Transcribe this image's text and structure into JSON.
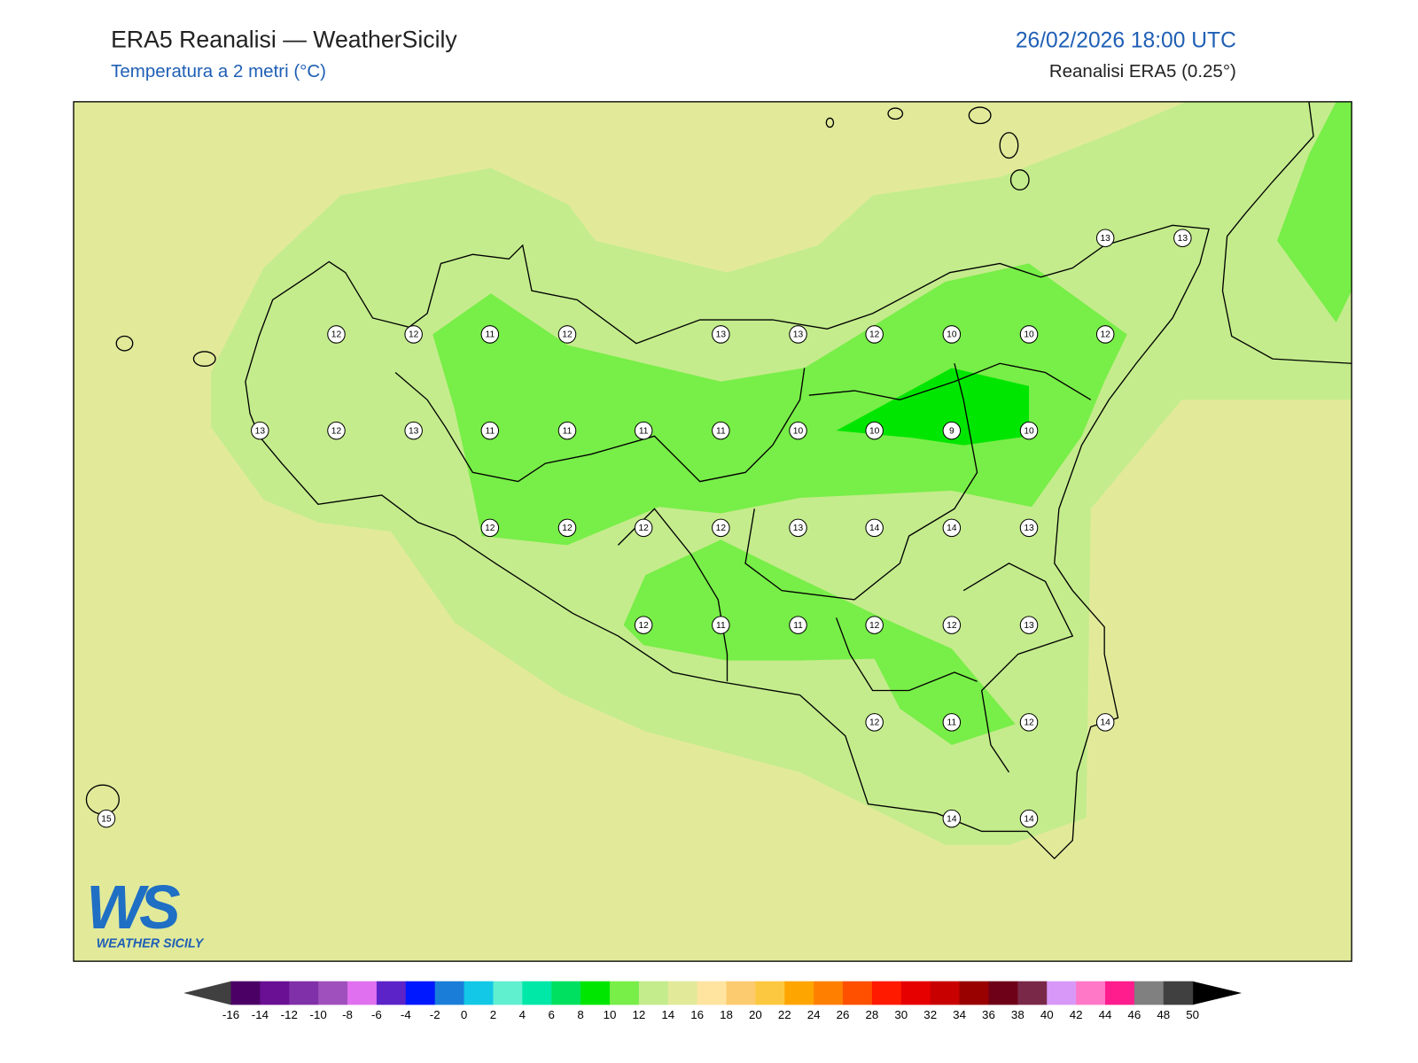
{
  "header": {
    "title": "ERA5 Reanalisi — WeatherSicily",
    "subtitle": "Temperatura a 2 metri (°C)",
    "datetime": "26/02/2026 18:00 UTC",
    "source": "Reanalisi ERA5 (0.25°)"
  },
  "map": {
    "station_values": [
      13,
      13,
      12,
      12,
      11,
      12,
      13,
      13,
      12,
      10,
      10,
      12,
      13,
      12,
      13,
      11,
      11,
      11,
      11,
      10,
      10,
      9,
      10,
      12,
      12,
      12,
      12,
      13,
      14,
      14,
      13,
      12,
      11,
      11,
      12,
      12,
      13,
      12,
      11,
      12,
      14,
      15,
      14,
      14
    ]
  },
  "colorbar": {
    "ticks": [
      -16,
      -14,
      -12,
      -10,
      -8,
      -6,
      -4,
      -2,
      0,
      2,
      4,
      6,
      8,
      10,
      12,
      14,
      16,
      18,
      20,
      22,
      24,
      26,
      28,
      30,
      32,
      34,
      36,
      38,
      40,
      42,
      44,
      46,
      48,
      50
    ],
    "colors": [
      "#4b0066",
      "#6a1094",
      "#8030a8",
      "#a050bc",
      "#e070f0",
      "#5c23c8",
      "#0018ff",
      "#1a7ed9",
      "#12c8e6",
      "#60f0d0",
      "#00e8a8",
      "#00e060",
      "#00e600",
      "#78ee48",
      "#c4ec8c",
      "#e2ea9a",
      "#ffe4a0",
      "#fccb70",
      "#fcc840",
      "#ffa500",
      "#ff8000",
      "#ff5000",
      "#ff1a00",
      "#e60000",
      "#c80000",
      "#990000",
      "#6e0018",
      "#7a2848",
      "#d898f8",
      "#ff78c8",
      "#ff1c8c",
      "#808080",
      "#404040"
    ],
    "extend_colors": [
      "#404040",
      "#000000"
    ]
  },
  "logo": {
    "mark": "WS",
    "name": "WEATHER SICILY"
  }
}
